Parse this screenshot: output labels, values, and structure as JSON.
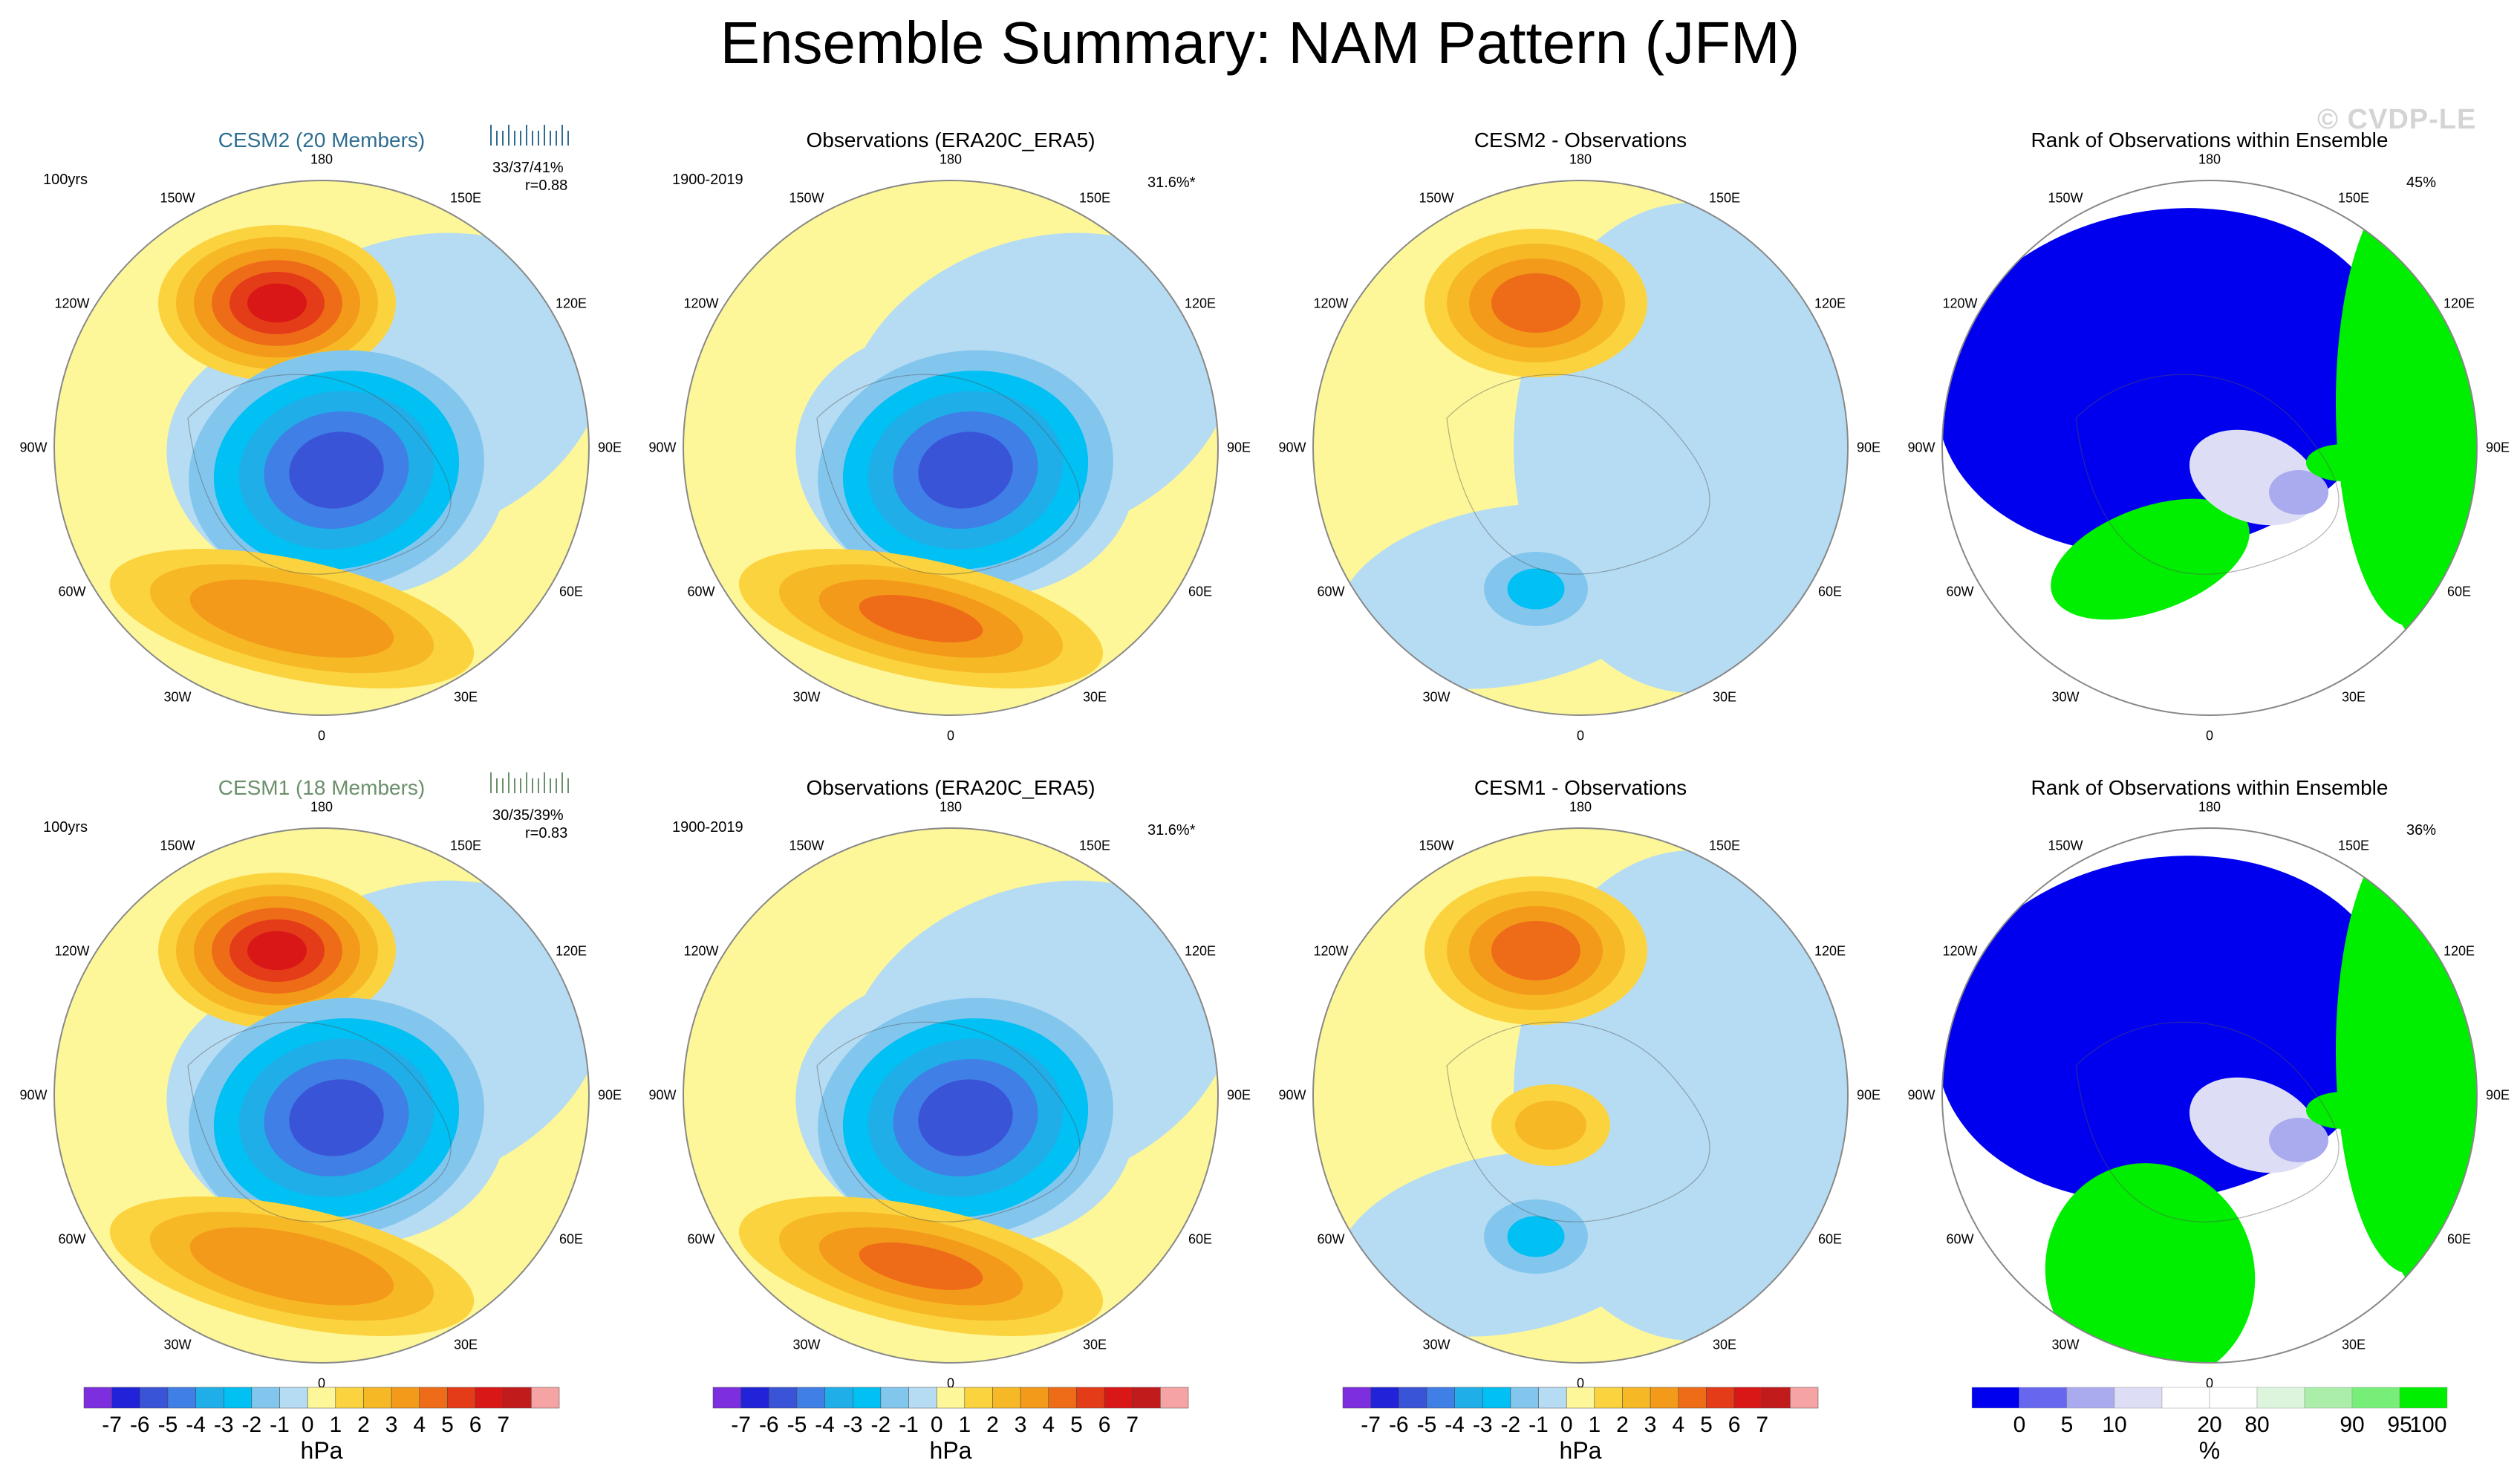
{
  "title": "Ensemble Summary: NAM Pattern (JFM)",
  "watermark": "© CVDP-LE",
  "colors": {
    "model1": "#2e6d91",
    "model2": "#6b8f6b",
    "diverging_scale": [
      "#7d2fe0",
      "#2222d8",
      "#3a54d8",
      "#3f7fe6",
      "#1faee8",
      "#00c0f4",
      "#82c6ee",
      "#b6dcf3",
      "#fdf799",
      "#fbd33f",
      "#f7b826",
      "#f49a1a",
      "#ee6c18",
      "#e43c18",
      "#d91717",
      "#c11b1b",
      "#f5a3a3"
    ],
    "rank_scale": [
      "#0000ee",
      "#6666ee",
      "#aaaaee",
      "#dddef5",
      "#ffffff",
      "#ffffff",
      "#ddf5dd",
      "#aaeeaa",
      "#77ee77",
      "#00ee00"
    ]
  },
  "rows": [
    {
      "model": {
        "title": "CESM2 (20 Members)",
        "years": "100yrs",
        "stats": "33/37/41%",
        "r": "r=0.88"
      },
      "obs": {
        "title": "Observations (ERA20C_ERA5)",
        "years": "1900-2019",
        "pct": "31.6%*"
      },
      "diff": {
        "title": "CESM2 - Observations"
      },
      "rank": {
        "title": "Rank of Observations within Ensemble",
        "pct": "45%"
      }
    },
    {
      "model": {
        "title": "CESM1 (18 Members)",
        "years": "100yrs",
        "stats": "30/35/39%",
        "r": "r=0.83"
      },
      "obs": {
        "title": "Observations (ERA20C_ERA5)",
        "years": "1900-2019",
        "pct": "31.6%*"
      },
      "diff": {
        "title": "CESM1 - Observations"
      },
      "rank": {
        "title": "Rank of Observations within Ensemble",
        "pct": "36%"
      }
    }
  ],
  "longitude_labels": [
    "180",
    "150E",
    "120E",
    "90E",
    "60E",
    "30E",
    "0",
    "30W",
    "60W",
    "90W",
    "120W",
    "150W"
  ],
  "colorbar": {
    "labels": [
      "-7",
      "-6",
      "-5",
      "-4",
      "-3",
      "-2",
      "-1",
      "0",
      "1",
      "2",
      "3",
      "4",
      "5",
      "6",
      "7"
    ],
    "unit": "hPa"
  },
  "rank_colorbar": {
    "labels": [
      "0",
      "5",
      "10",
      "20",
      "80",
      "90",
      "95",
      "100"
    ],
    "unit": "%"
  }
}
